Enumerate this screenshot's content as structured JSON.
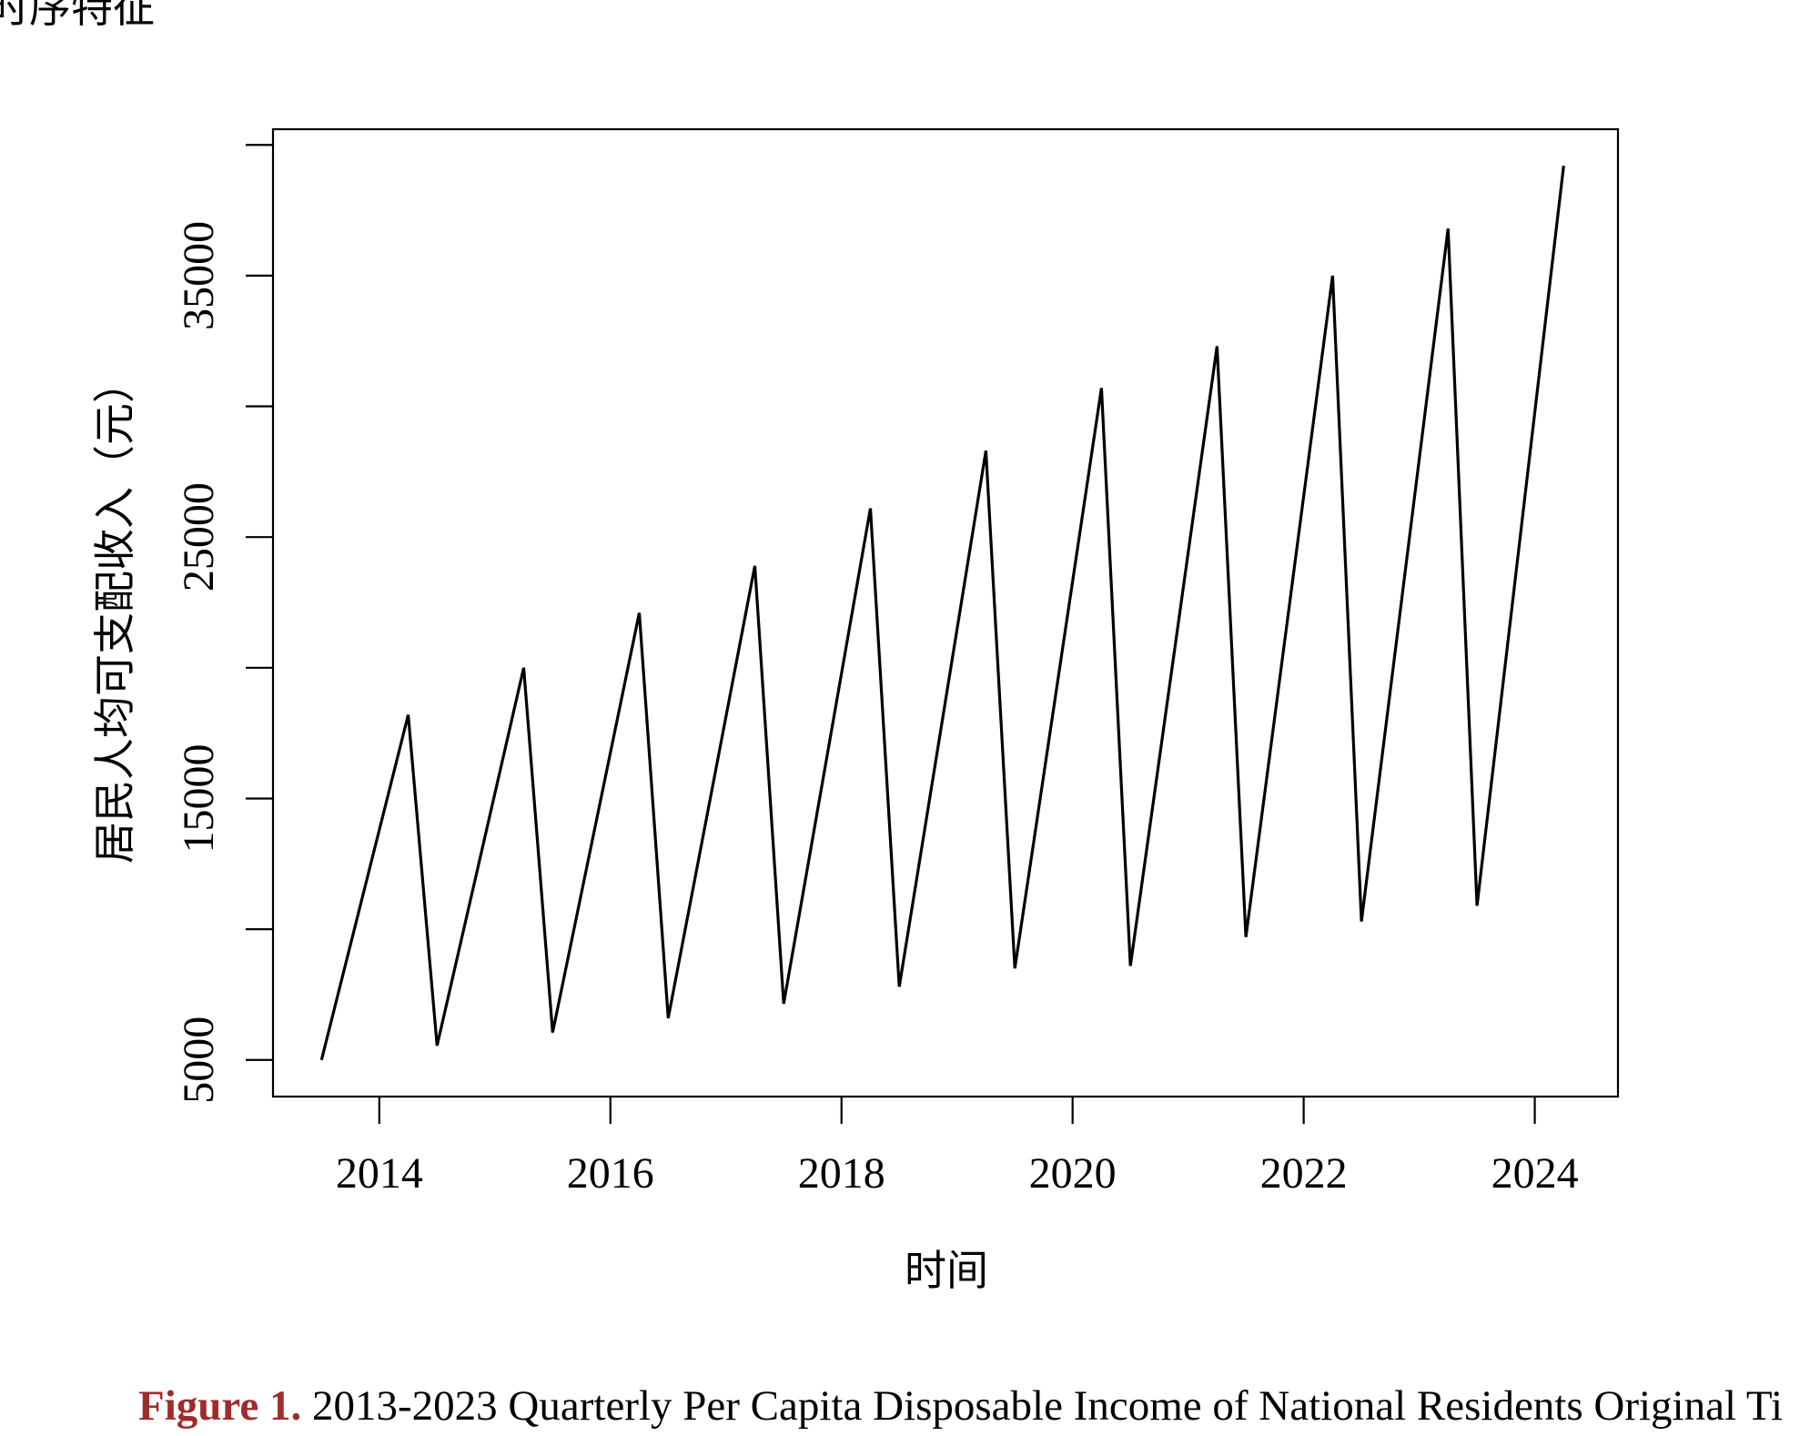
{
  "header": {
    "fragment_text": "的时序特征"
  },
  "caption": {
    "label": "Figure 1.",
    "text": " 2013-2023 Quarterly Per Capita Disposable Income of National Residents Original Ti"
  },
  "colors": {
    "line": "#000000",
    "caption_label": "#a02b2b"
  },
  "chart_data": {
    "type": "line",
    "title": "",
    "xlabel": "时间",
    "ylabel": "居民人均可支配收入（元）",
    "xlim": [
      2013.08,
      2024.72
    ],
    "ylim": [
      3600,
      40600
    ],
    "x_ticks": [
      2014,
      2016,
      2018,
      2020,
      2022,
      2024
    ],
    "y_ticks": [
      5000,
      10000,
      15000,
      20000,
      25000,
      30000,
      35000,
      40000
    ],
    "y_tick_labels_shown": [
      "5000",
      "15000",
      "25000",
      "35000"
    ],
    "grid": false,
    "series": [
      {
        "name": "居民人均可支配收入",
        "x": [
          2013.5,
          2014.25,
          2014.5,
          2015.25,
          2015.5,
          2016.25,
          2016.5,
          2017.25,
          2017.5,
          2018.25,
          2018.5,
          2019.25,
          2019.5,
          2020.25,
          2020.5,
          2021.25,
          2021.5,
          2022.25,
          2022.5,
          2023.25,
          2023.5,
          2024.25
        ],
        "values": [
          5000,
          18200,
          5550,
          20000,
          6050,
          22100,
          6600,
          23900,
          7150,
          26100,
          7800,
          28300,
          8500,
          30700,
          8600,
          32300,
          9700,
          35000,
          10300,
          36800,
          10900,
          39200
        ]
      }
    ]
  }
}
